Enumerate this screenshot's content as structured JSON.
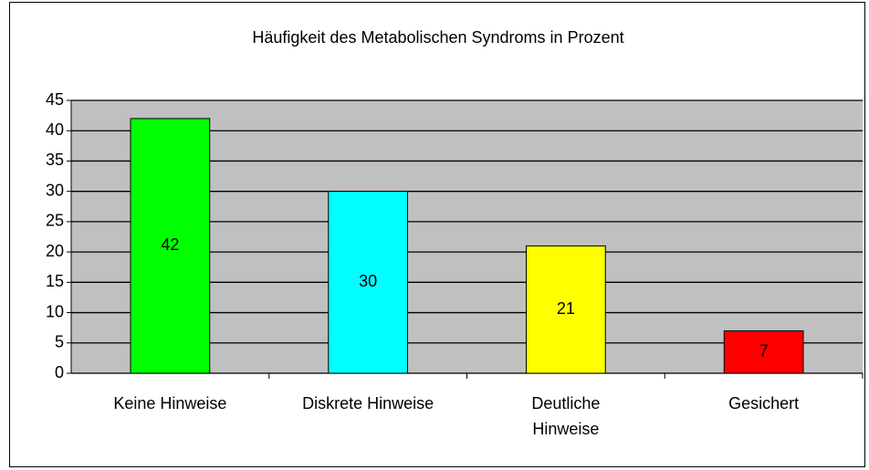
{
  "chart_data": {
    "type": "bar",
    "title": "Häufigkeit des Metabolischen Syndroms in Prozent",
    "categories": [
      "Keine Hinweise",
      "Diskrete Hinweise",
      "Deutliche\nHinweise",
      "Gesichert"
    ],
    "values": [
      42,
      30,
      21,
      7
    ],
    "colors": [
      "#00ff00",
      "#00ffff",
      "#ffff00",
      "#ff0000"
    ],
    "ylim": [
      0,
      45
    ],
    "yticks": [
      0,
      5,
      10,
      15,
      20,
      25,
      30,
      35,
      40,
      45
    ],
    "grid": true
  }
}
